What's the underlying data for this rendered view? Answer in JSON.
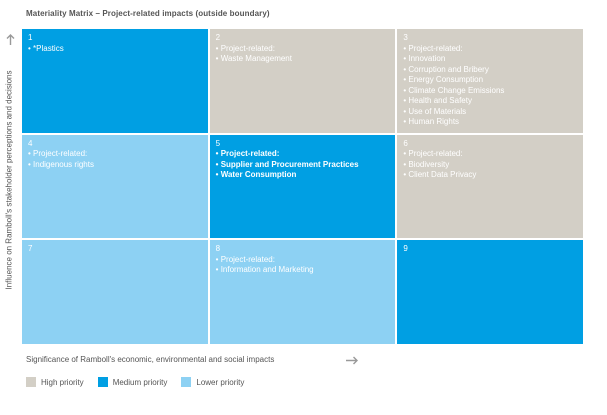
{
  "title": "Materiality Matrix – Project-related impacts (outside boundary)",
  "y_axis_label": "Influence on Ramboll's stakeholder perceptions and decisions",
  "x_axis_label": "Significance of Ramboll's economic, environmental and social impacts",
  "colors": {
    "high": "#d3cfc6",
    "medium": "#009fe3",
    "lower": "#8dd1f3"
  },
  "cells": [
    {
      "number": "1",
      "priority": "medium",
      "items": [
        "*Plastics"
      ]
    },
    {
      "number": "2",
      "priority": "high",
      "items": [
        "Project-related:",
        "Waste Management"
      ]
    },
    {
      "number": "3",
      "priority": "high",
      "items": [
        "Project-related:",
        "Innovation",
        "Corruption and Bribery",
        "Energy Consumption",
        "Climate Change Emissions",
        "Health and Safety",
        "Use of Materials",
        "Human Rights"
      ]
    },
    {
      "number": "4",
      "priority": "lower",
      "items": [
        "Project-related:",
        "Indigenous rights"
      ]
    },
    {
      "number": "5",
      "priority": "medium",
      "items": [
        "Project-related:",
        "Supplier and Procurement Practices",
        "Water Consumption"
      ]
    },
    {
      "number": "6",
      "priority": "high",
      "items": [
        "Project-related:",
        "Biodiversity",
        "Client Data Privacy"
      ]
    },
    {
      "number": "7",
      "priority": "lower",
      "items": []
    },
    {
      "number": "8",
      "priority": "lower",
      "items": [
        "Project-related:",
        "Information and Marketing"
      ]
    },
    {
      "number": "9",
      "priority": "medium",
      "items": []
    }
  ],
  "legend": [
    {
      "label": "High priority",
      "color": "#d3cfc6"
    },
    {
      "label": "Medium priority",
      "color": "#009fe3"
    },
    {
      "label": "Lower priority",
      "color": "#8dd1f3"
    }
  ]
}
